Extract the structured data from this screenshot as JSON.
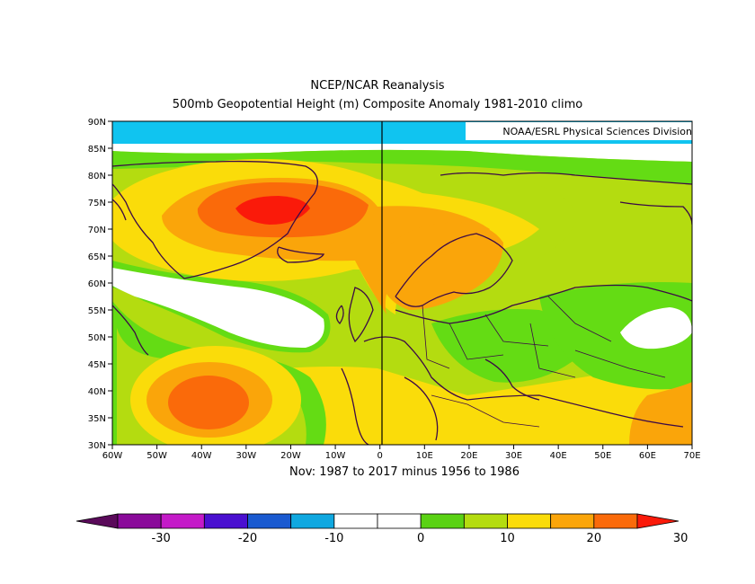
{
  "title": "NCEP/NCAR Reanalysis",
  "subtitle": "500mb Geopotential Height (m) Composite Anomaly 1981-2010 climo",
  "credit": "NOAA/ESRL Physical Sciences Division",
  "period": "Nov: 1987 to 2017 minus 1956 to 1986",
  "axes": {
    "lat_labels": [
      "90N",
      "85N",
      "80N",
      "75N",
      "70N",
      "65N",
      "60N",
      "55N",
      "50N",
      "45N",
      "40N",
      "35N",
      "30N"
    ],
    "lon_labels": [
      "60W",
      "50W",
      "40W",
      "30W",
      "20W",
      "10W",
      "0",
      "10E",
      "20E",
      "30E",
      "40E",
      "50E",
      "60E",
      "70E"
    ]
  },
  "colorbar": {
    "labels": [
      "-30",
      "-20",
      "-10",
      "0",
      "10",
      "20",
      "30"
    ],
    "colors": [
      "#5a0a5a",
      "#8a0a9a",
      "#c41ac8",
      "#4a10d0",
      "#1a5ad0",
      "#10a8e0",
      "#ffffff",
      "#ffffff",
      "#5ad214",
      "#b4dc10",
      "#fadc0a",
      "#faa50a",
      "#fa6a0a",
      "#fa1a0a"
    ]
  },
  "palette": {
    "cyan": "#10c4f0",
    "white": "#ffffff",
    "green": "#64dc14",
    "yellowgreen": "#b4dc10",
    "yellow": "#fadc0a",
    "orange": "#faa50a",
    "darkorange": "#fa6a0a",
    "red": "#fa1a0a",
    "coast": "#3c0a46"
  }
}
